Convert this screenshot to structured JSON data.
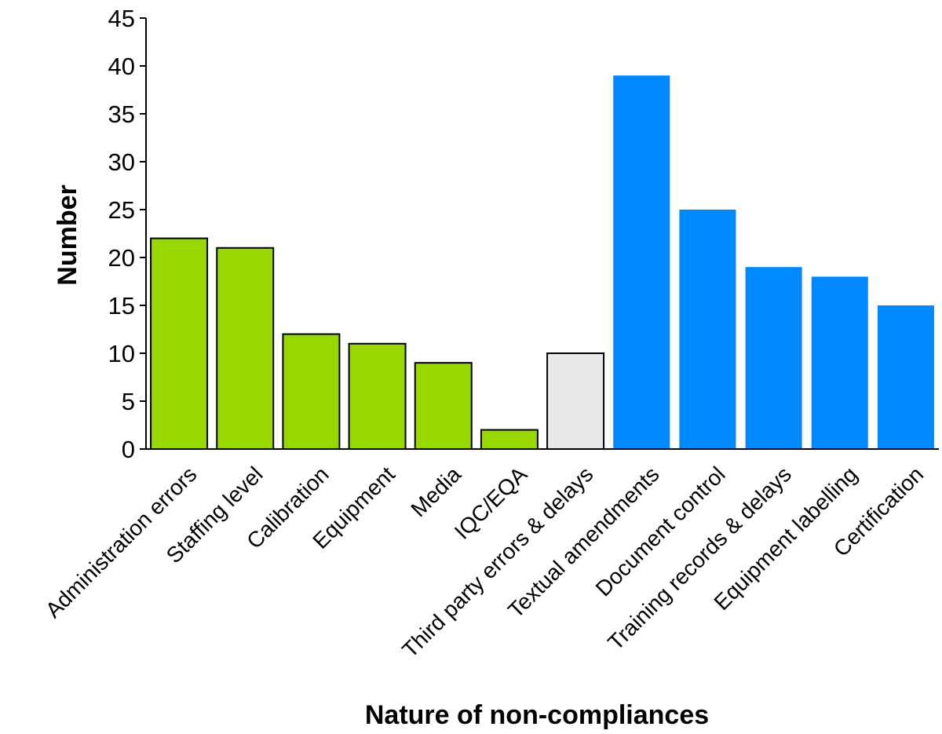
{
  "chart_data": {
    "type": "bar",
    "title": "",
    "xlabel": "Nature of non-compliances",
    "ylabel": "Number",
    "ylim": [
      0,
      45
    ],
    "yticks": [
      0,
      5,
      10,
      15,
      20,
      25,
      30,
      35,
      40,
      45
    ],
    "grid": false,
    "legend": "none",
    "categories": [
      "Administration errors",
      "Staffing level",
      "Calibration",
      "Equipment",
      "Media",
      "IQC/EQA",
      "Third party errors & delays",
      "Textual amendments",
      "Document control",
      "Training records & delays",
      "Equipment labelling",
      "Certification"
    ],
    "values": [
      22,
      21,
      12,
      11,
      9,
      2,
      10,
      39,
      25,
      19,
      18,
      15
    ],
    "colors": [
      "#99D700",
      "#99D700",
      "#99D700",
      "#99D700",
      "#99D700",
      "#99D700",
      "#E8E8E8",
      "#0088FF",
      "#0088FF",
      "#0088FF",
      "#0088FF",
      "#0088FF"
    ],
    "outlined": [
      true,
      true,
      true,
      true,
      true,
      true,
      true,
      false,
      false,
      false,
      false,
      false
    ]
  }
}
